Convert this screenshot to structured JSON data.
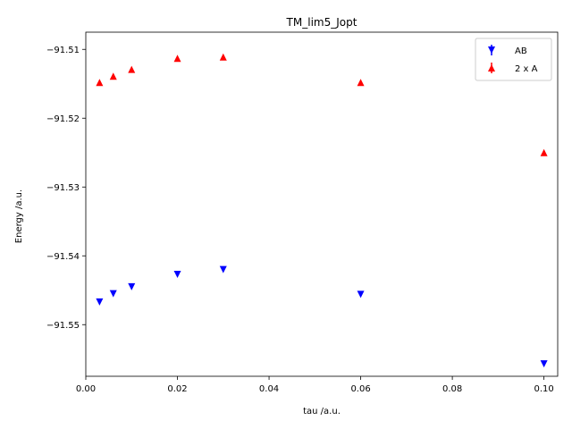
{
  "chart_data": {
    "type": "scatter",
    "title": "TM_lim5_Jopt",
    "xlabel": "tau /a.u.",
    "ylabel": "Energy /a.u.",
    "xlim": [
      0.0,
      0.103
    ],
    "ylim": [
      -91.5575,
      -91.5075
    ],
    "xticks": [
      0.0,
      0.02,
      0.04,
      0.06,
      0.08,
      0.1
    ],
    "xtick_labels": [
      "0.00",
      "0.02",
      "0.04",
      "0.06",
      "0.08",
      "0.10"
    ],
    "yticks": [
      -91.55,
      -91.54,
      -91.53,
      -91.52,
      -91.51
    ],
    "ytick_labels": [
      "−91.55",
      "−91.54",
      "−91.53",
      "−91.52",
      "−91.51"
    ],
    "grid": false,
    "legend": "top-right",
    "series": [
      {
        "name": "AB",
        "marker": "triangle-down",
        "color": "#0000ff",
        "x": [
          0.003,
          0.006,
          0.01,
          0.02,
          0.03,
          0.06,
          0.1
        ],
        "y": [
          -91.5467,
          -91.5455,
          -91.5445,
          -91.5427,
          -91.542,
          -91.5456,
          -91.5557
        ]
      },
      {
        "name": "2 x A",
        "marker": "triangle-up",
        "color": "#ff0000",
        "x": [
          0.003,
          0.006,
          0.01,
          0.02,
          0.03,
          0.06,
          0.1
        ],
        "y": [
          -91.5148,
          -91.5139,
          -91.5129,
          -91.5113,
          -91.5111,
          -91.5148,
          -91.525
        ]
      }
    ]
  }
}
